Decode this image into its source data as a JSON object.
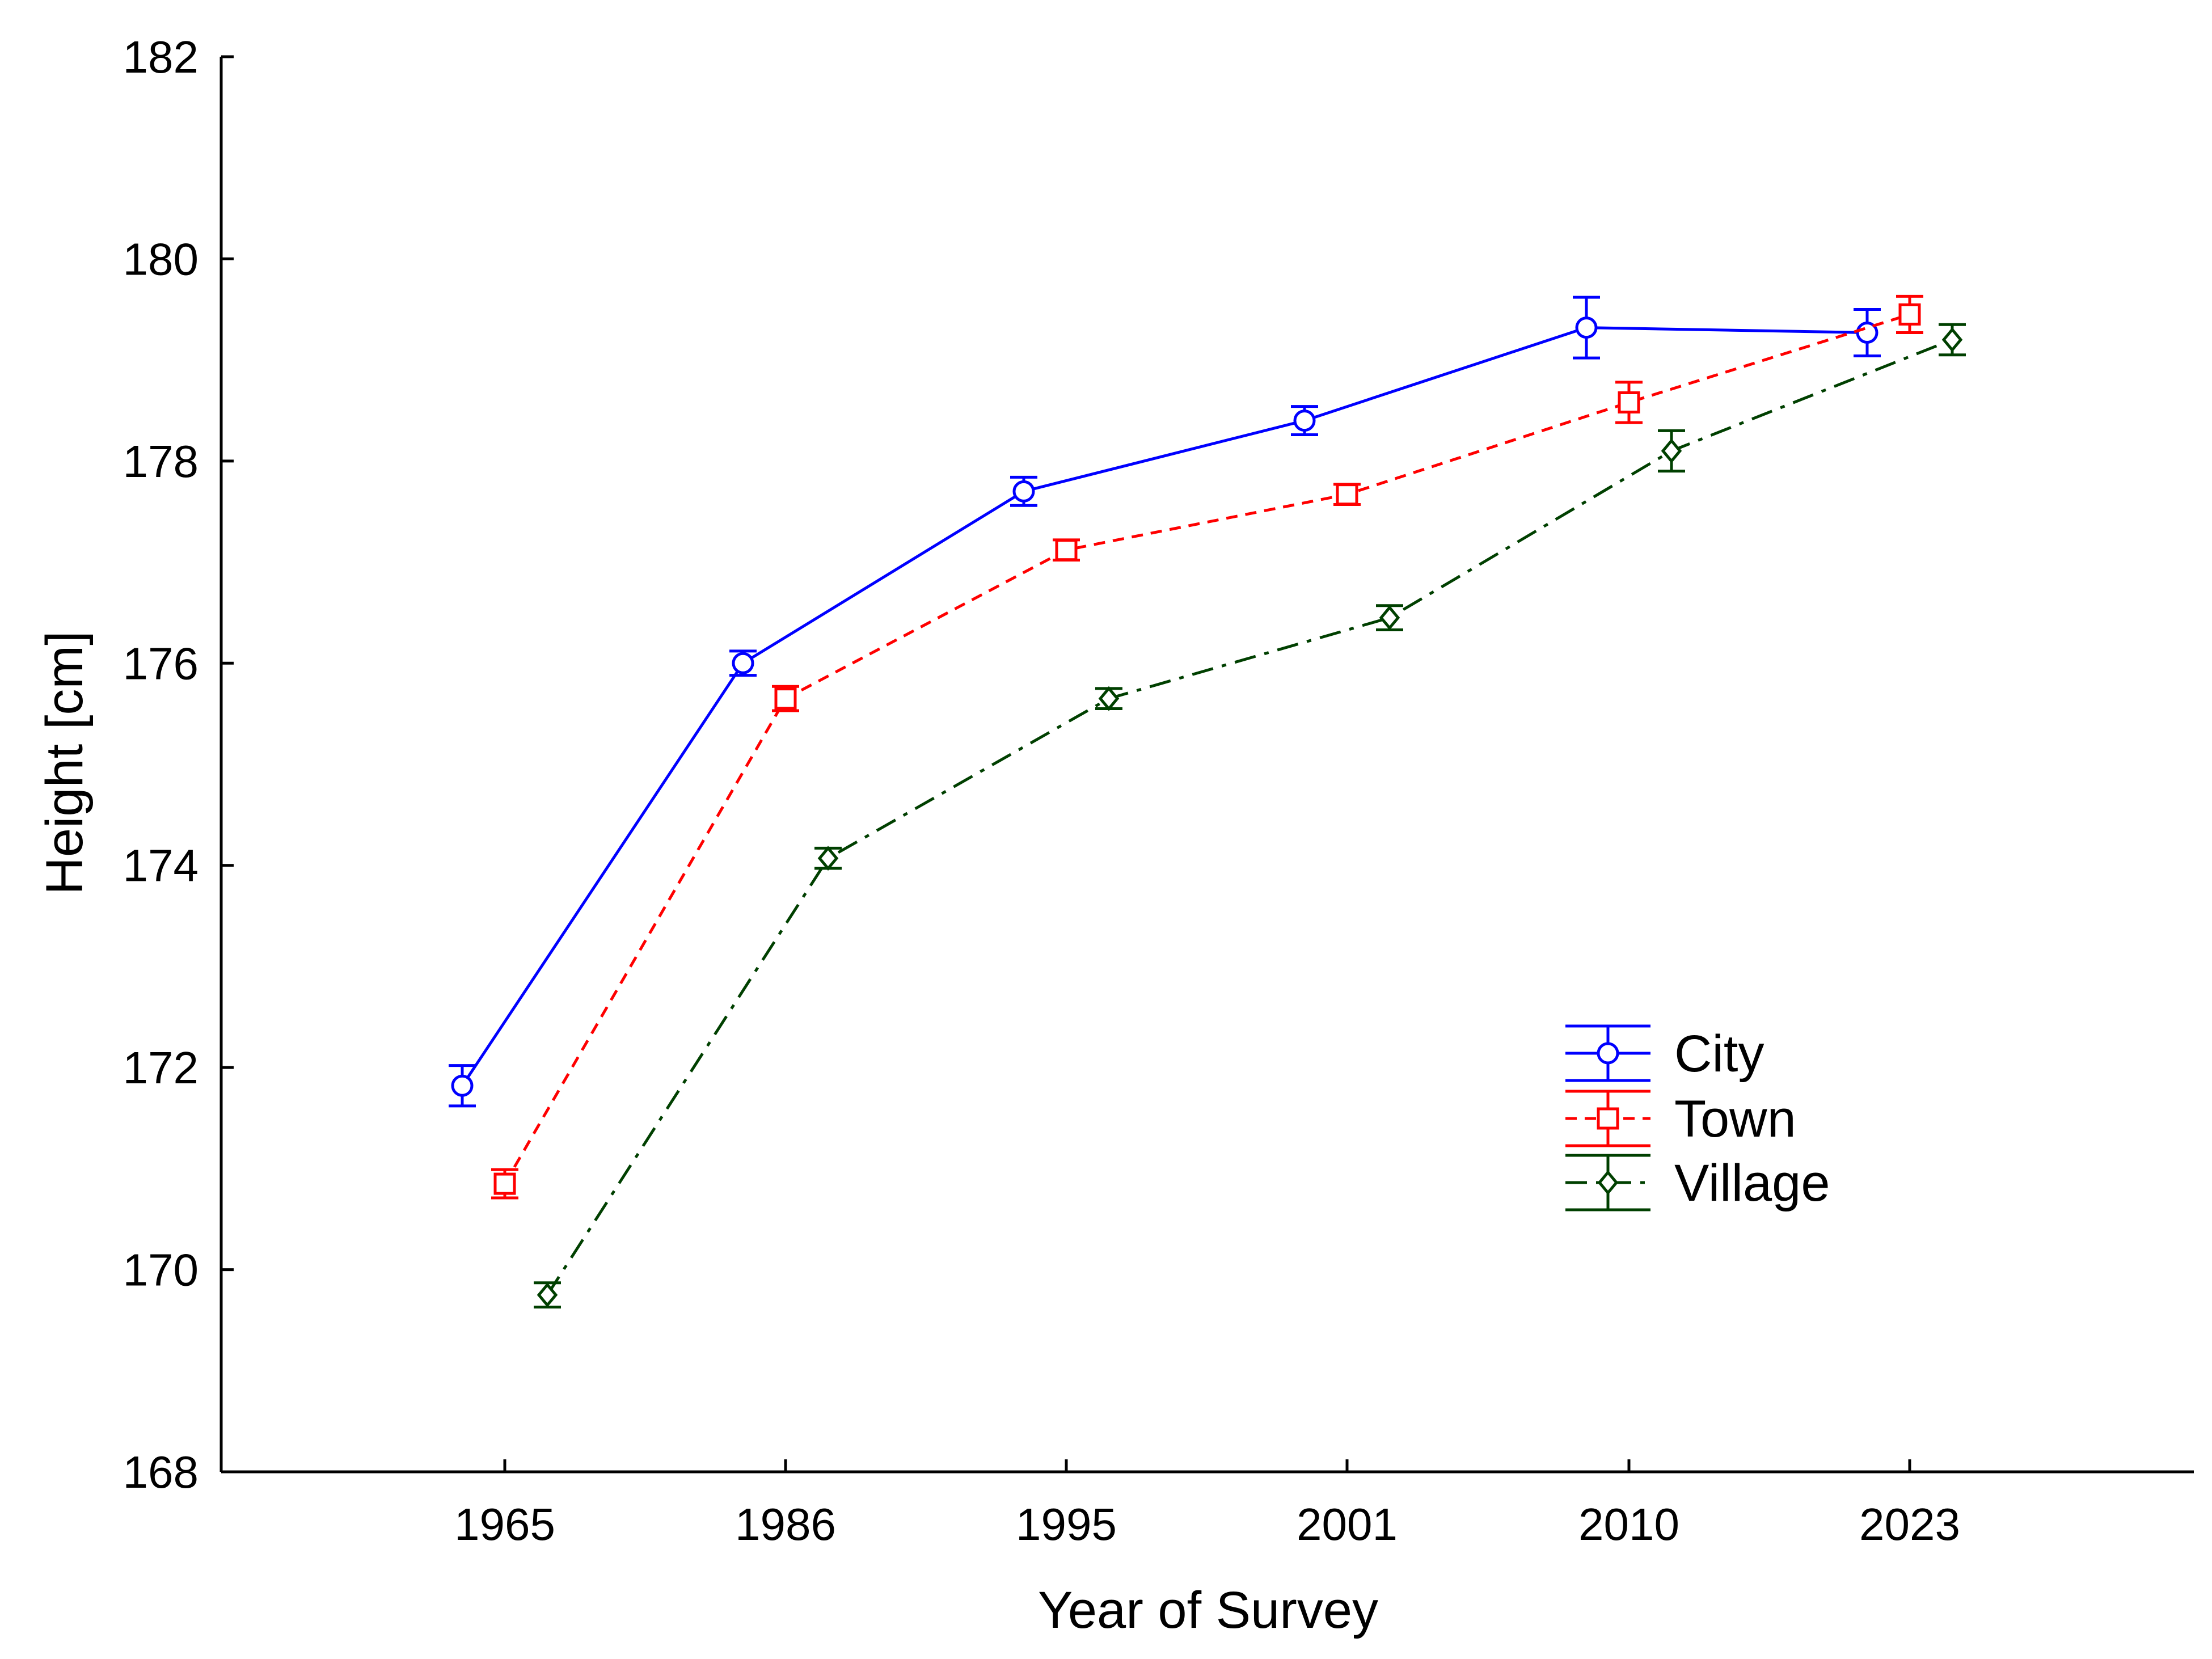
{
  "chart_data": {
    "type": "line",
    "title": "",
    "xlabel": "Year of Survey",
    "ylabel": "Height [cm]",
    "categories": [
      "1965",
      "1986",
      "1995",
      "2001",
      "2010",
      "2023"
    ],
    "ylim": [
      168,
      182
    ],
    "yticks": [
      168,
      170,
      172,
      174,
      176,
      178,
      180,
      182
    ],
    "grid": false,
    "legend_position": "lower-right",
    "series": [
      {
        "name": "City",
        "color": "#0000ff",
        "line_style": "solid",
        "marker": "circle",
        "values": [
          171.82,
          176.0,
          177.7,
          178.4,
          179.32,
          179.27
        ],
        "errors": [
          0.2,
          0.12,
          0.14,
          0.14,
          0.3,
          0.23
        ]
      },
      {
        "name": "Town",
        "color": "#ff0000",
        "line_style": "dotted",
        "marker": "square",
        "values": [
          170.85,
          175.65,
          177.12,
          177.67,
          178.58,
          179.45
        ],
        "errors": [
          0.14,
          0.12,
          0.1,
          0.1,
          0.2,
          0.18
        ]
      },
      {
        "name": "Village",
        "color": "#004000",
        "line_style": "dashdot",
        "marker": "diamond",
        "values": [
          169.75,
          174.07,
          175.65,
          176.45,
          178.1,
          179.2
        ],
        "errors": [
          0.12,
          0.1,
          0.1,
          0.12,
          0.2,
          0.15
        ]
      }
    ]
  }
}
